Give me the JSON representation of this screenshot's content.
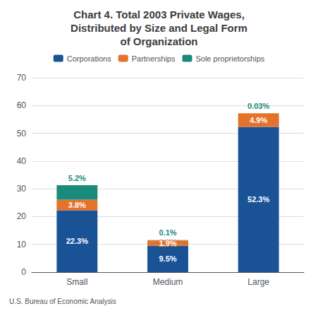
{
  "chart_data": {
    "type": "bar",
    "title": "Chart 4. Total 2003 Private Wages,\nDistributed by Size and Legal Form\nof Organization",
    "categories": [
      "Small",
      "Medium",
      "Large"
    ],
    "series": [
      {
        "name": "Corporations",
        "color": "#1a5296",
        "values": [
          22.3,
          9.5,
          52.3
        ],
        "value_labels": [
          "22.3%",
          "9.5%",
          "52.3%"
        ]
      },
      {
        "name": "Partnerships",
        "color": "#e5722a",
        "values": [
          3.8,
          1.9,
          4.9
        ],
        "value_labels": [
          "3.8%",
          "1.9%",
          "4.9%"
        ]
      },
      {
        "name": "Sole proprietorships",
        "color": "#1a8a7a",
        "values": [
          5.2,
          0.1,
          0.03
        ],
        "value_labels": [
          "5.2%",
          "0.1%",
          "0.03%"
        ]
      }
    ],
    "stacked": true,
    "data_labels": true,
    "ylim": [
      0,
      70
    ],
    "yticks": [
      0,
      10,
      20,
      30,
      40,
      50,
      60,
      70
    ],
    "grid": true,
    "legend": "top",
    "annotations": [
      "U.S. Bureau of Economic Analysis"
    ]
  }
}
